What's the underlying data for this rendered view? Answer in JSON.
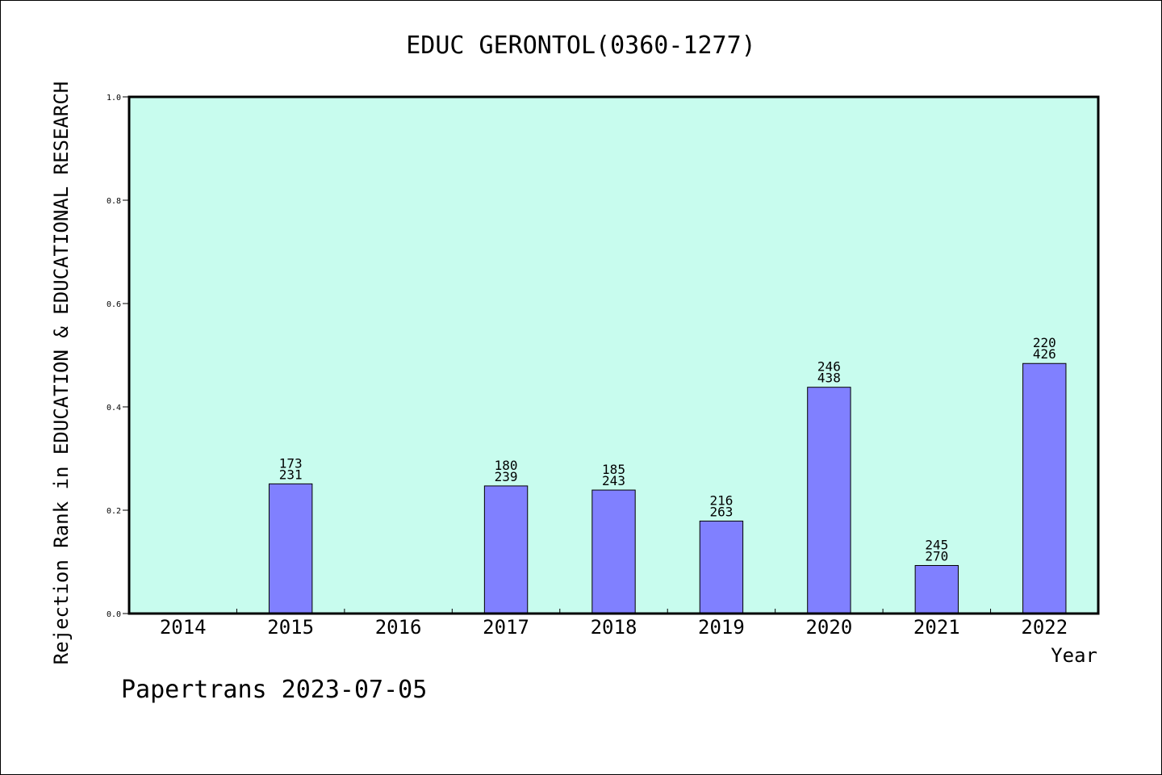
{
  "chart_data": {
    "type": "bar",
    "title": "EDUC GERONTOL(0360-1277)",
    "xlabel": "Year",
    "ylabel": "Rejection Rank in EDUCATION & EDUCATIONAL RESEARCH",
    "categories": [
      "2014",
      "2015",
      "2016",
      "2017",
      "2018",
      "2019",
      "2020",
      "2021",
      "2022"
    ],
    "values": [
      null,
      0.251,
      null,
      0.247,
      0.239,
      0.179,
      0.438,
      0.093,
      0.484
    ],
    "labels_top": [
      "",
      "173",
      "",
      "180",
      "185",
      "216",
      "246",
      "245",
      "220"
    ],
    "labels_bottom": [
      "",
      "231",
      "",
      "239",
      "243",
      "263",
      "438",
      "270",
      "426"
    ],
    "ylim": [
      0,
      1.0
    ],
    "yticks": [
      "0.0",
      "0.2",
      "0.4",
      "0.6",
      "0.8",
      "1.0"
    ],
    "grid": false,
    "colors": {
      "plot_background": "#c8fcee",
      "bar_fill": "#8080ff",
      "bar_stroke": "#000000"
    }
  },
  "footer": {
    "text": "Papertrans 2023-07-05"
  }
}
